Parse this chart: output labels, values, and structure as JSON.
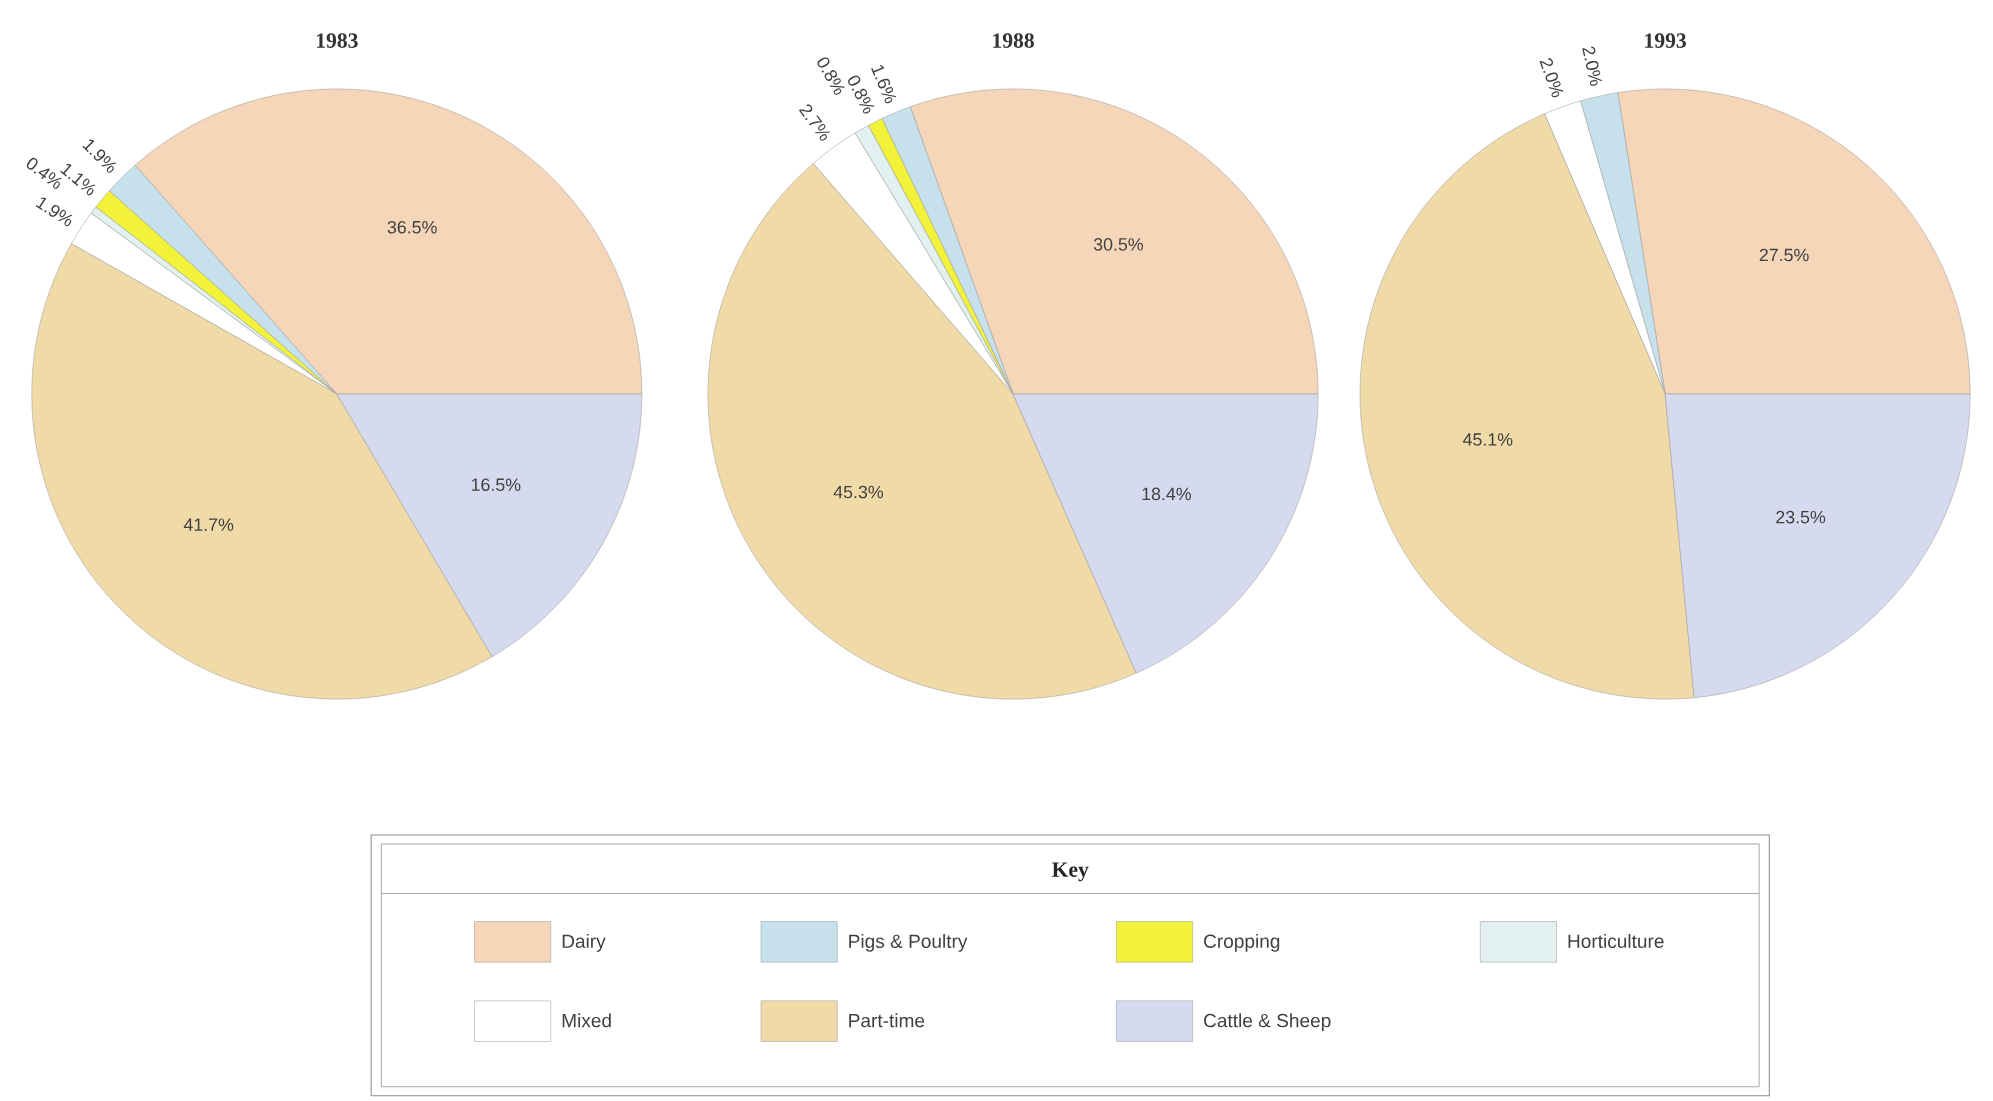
{
  "chart_data": [
    {
      "type": "pie",
      "title": "1983",
      "categories": [
        null,
        null,
        null,
        null,
        null,
        null,
        null
      ],
      "values": [
        36.5,
        1.9,
        1.1,
        0.4,
        1.9,
        41.7,
        16.5
      ],
      "value_labels": [
        "36.5%",
        "1.9%",
        "1.1%",
        "0.4%",
        "1.9%",
        "41.7%",
        "16.5%"
      ],
      "colors": [
        "#f5d6b8",
        "#c6e1ec",
        "#f2f23a",
        "#e2f0f0",
        "#ffffff",
        "#f0dba8",
        "#d6daee"
      ]
    },
    {
      "type": "pie",
      "title": "1988",
      "categories": [
        "Dairy",
        "Pigs & Poultry",
        "Cropping",
        "Horticulture",
        "Mixed",
        "Part-time",
        "Cattle & Sheep"
      ],
      "values": [
        30.5,
        1.6,
        0.8,
        0.8,
        2.7,
        45.3,
        18.4
      ],
      "value_labels": [
        "30.5%",
        "1.6%",
        "0.8%",
        "0.8%",
        "2.7%",
        "45.3%",
        "18.4%"
      ],
      "colors": [
        "#f5d6b8",
        "#c6e1ec",
        "#f2f23a",
        "#e2f0f0",
        "#ffffff",
        "#f0dba8",
        "#d6daee"
      ],
      "legend": "bottom",
      "legend_title": "Key"
    },
    {
      "type": "pie",
      "title": "1993",
      "categories": [
        null,
        null,
        null,
        null,
        null,
        null,
        null
      ],
      "values": [
        27.5,
        2.0,
        null,
        null,
        2.0,
        45.1,
        23.5
      ],
      "value_labels": [
        "27.5%",
        "2.0%",
        null,
        null,
        "2.0%",
        "45.1%",
        "23.5%"
      ],
      "colors": [
        "#f5d6b8",
        "#c6e1ec",
        "#f2f23a",
        "#e2f0f0",
        "#ffffff",
        "#f0dba8",
        "#d6daee"
      ]
    }
  ]
}
